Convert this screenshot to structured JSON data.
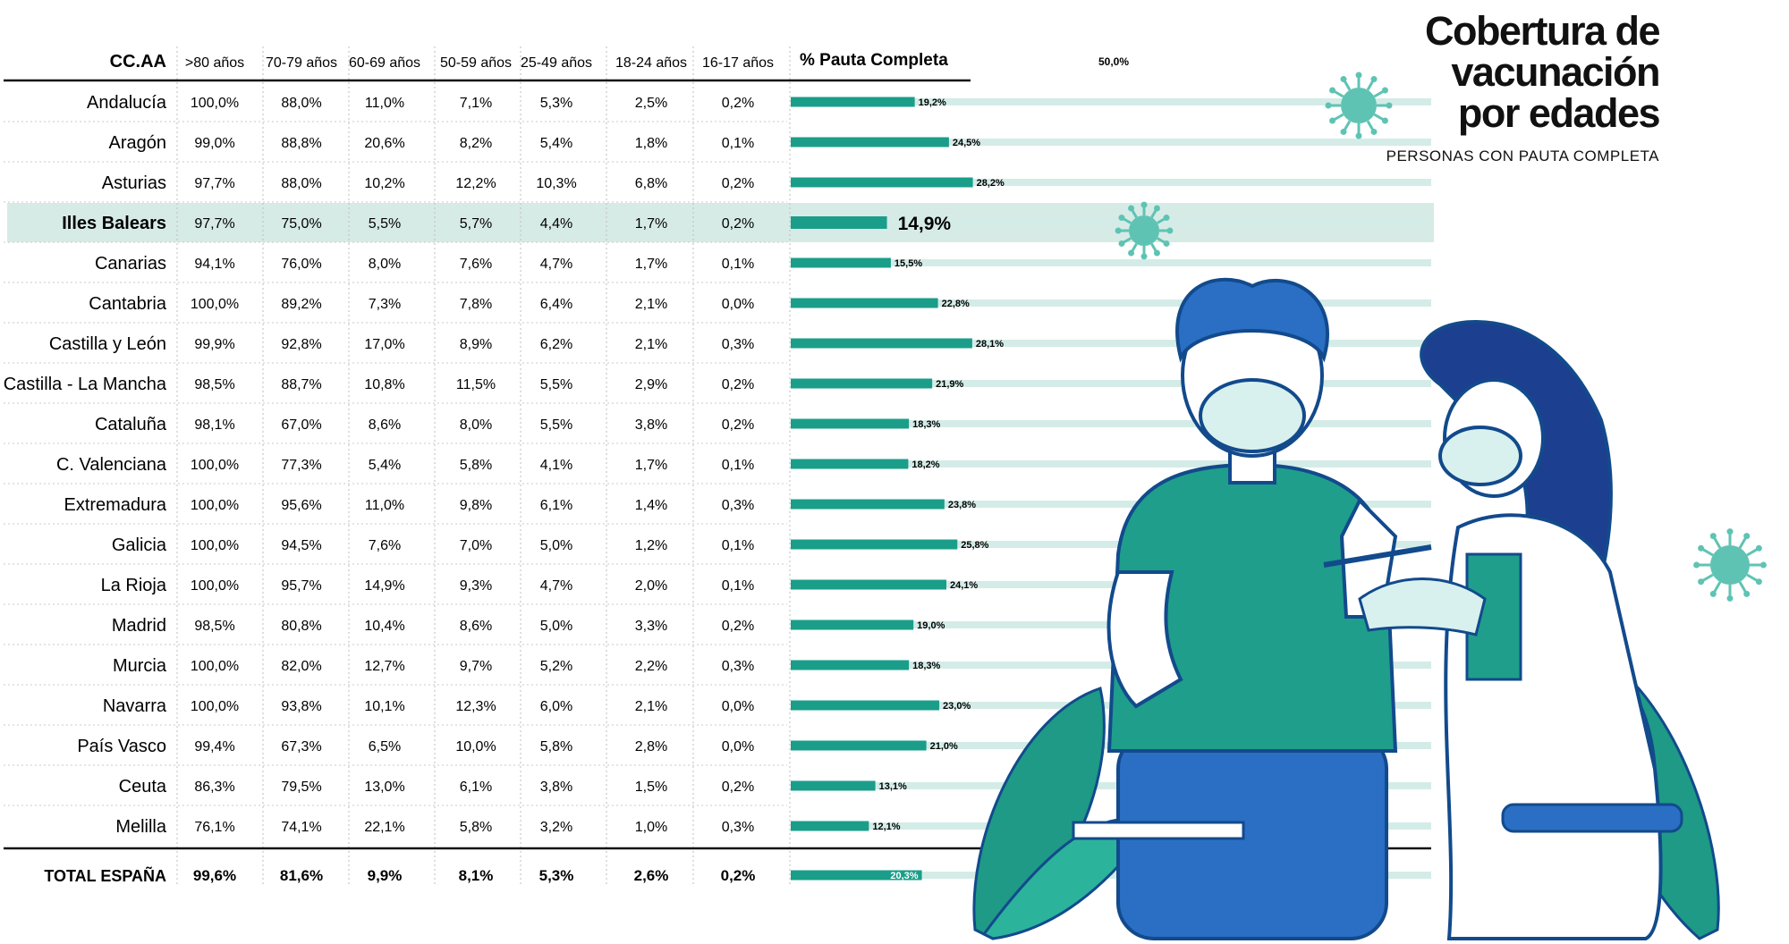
{
  "title_lines": [
    "Cobertura de",
    "vacunación",
    "por edades"
  ],
  "subtitle": "PERSONAS CON PAUTA COMPLETA",
  "columns": [
    "CC.AA",
    ">80 años",
    "70-79 años",
    "60-69 años",
    "50-59 años",
    "25-49 años",
    "18-24 años",
    "16-17 años",
    "% Pauta Completa"
  ],
  "scale_label": "50,0%",
  "highlight_row": "Illes Balears",
  "colors": {
    "bar": "#1a9e8a",
    "track": "#d4ece7",
    "highlight": "#d7ebe6",
    "virus": "#5fc3b3"
  },
  "chart_data": {
    "type": "table",
    "bar_column": "% Pauta Completa",
    "xlim": [
      0,
      50
    ],
    "rows": [
      {
        "region": "Andalucía",
        "values": [
          "100,0%",
          "88,0%",
          "11,0%",
          "7,1%",
          "5,3%",
          "2,5%",
          "0,2%"
        ],
        "pauta": 19.2,
        "pauta_label": "19,2%"
      },
      {
        "region": "Aragón",
        "values": [
          "99,0%",
          "88,8%",
          "20,6%",
          "8,2%",
          "5,4%",
          "1,8%",
          "0,1%"
        ],
        "pauta": 24.5,
        "pauta_label": "24,5%"
      },
      {
        "region": "Asturias",
        "values": [
          "97,7%",
          "88,0%",
          "10,2%",
          "12,2%",
          "10,3%",
          "6,8%",
          "0,2%"
        ],
        "pauta": 28.2,
        "pauta_label": "28,2%"
      },
      {
        "region": "Illes Balears",
        "values": [
          "97,7%",
          "75,0%",
          "5,5%",
          "5,7%",
          "4,4%",
          "1,7%",
          "0,2%"
        ],
        "pauta": 14.9,
        "pauta_label": "14,9%"
      },
      {
        "region": "Canarias",
        "values": [
          "94,1%",
          "76,0%",
          "8,0%",
          "7,6%",
          "4,7%",
          "1,7%",
          "0,1%"
        ],
        "pauta": 15.5,
        "pauta_label": "15,5%"
      },
      {
        "region": "Cantabria",
        "values": [
          "100,0%",
          "89,2%",
          "7,3%",
          "7,8%",
          "6,4%",
          "2,1%",
          "0,0%"
        ],
        "pauta": 22.8,
        "pauta_label": "22,8%"
      },
      {
        "region": "Castilla y León",
        "values": [
          "99,9%",
          "92,8%",
          "17,0%",
          "8,9%",
          "6,2%",
          "2,1%",
          "0,3%"
        ],
        "pauta": 28.1,
        "pauta_label": "28,1%"
      },
      {
        "region": "Castilla - La Mancha",
        "values": [
          "98,5%",
          "88,7%",
          "10,8%",
          "11,5%",
          "5,5%",
          "2,9%",
          "0,2%"
        ],
        "pauta": 21.9,
        "pauta_label": "21,9%"
      },
      {
        "region": "Cataluña",
        "values": [
          "98,1%",
          "67,0%",
          "8,6%",
          "8,0%",
          "5,5%",
          "3,8%",
          "0,2%"
        ],
        "pauta": 18.3,
        "pauta_label": "18,3%"
      },
      {
        "region": "C. Valenciana",
        "values": [
          "100,0%",
          "77,3%",
          "5,4%",
          "5,8%",
          "4,1%",
          "1,7%",
          "0,1%"
        ],
        "pauta": 18.2,
        "pauta_label": "18,2%"
      },
      {
        "region": "Extremadura",
        "values": [
          "100,0%",
          "95,6%",
          "11,0%",
          "9,8%",
          "6,1%",
          "1,4%",
          "0,3%"
        ],
        "pauta": 23.8,
        "pauta_label": "23,8%"
      },
      {
        "region": "Galicia",
        "values": [
          "100,0%",
          "94,5%",
          "7,6%",
          "7,0%",
          "5,0%",
          "1,2%",
          "0,1%"
        ],
        "pauta": 25.8,
        "pauta_label": "25,8%"
      },
      {
        "region": "La Rioja",
        "values": [
          "100,0%",
          "95,7%",
          "14,9%",
          "9,3%",
          "4,7%",
          "2,0%",
          "0,1%"
        ],
        "pauta": 24.1,
        "pauta_label": "24,1%"
      },
      {
        "region": "Madrid",
        "values": [
          "98,5%",
          "80,8%",
          "10,4%",
          "8,6%",
          "5,0%",
          "3,3%",
          "0,2%"
        ],
        "pauta": 19.0,
        "pauta_label": "19,0%"
      },
      {
        "region": "Murcia",
        "values": [
          "100,0%",
          "82,0%",
          "12,7%",
          "9,7%",
          "5,2%",
          "2,2%",
          "0,3%"
        ],
        "pauta": 18.3,
        "pauta_label": "18,3%"
      },
      {
        "region": "Navarra",
        "values": [
          "100,0%",
          "93,8%",
          "10,1%",
          "12,3%",
          "6,0%",
          "2,1%",
          "0,0%"
        ],
        "pauta": 23.0,
        "pauta_label": "23,0%"
      },
      {
        "region": "País Vasco",
        "values": [
          "99,4%",
          "67,3%",
          "6,5%",
          "10,0%",
          "5,8%",
          "2,8%",
          "0,0%"
        ],
        "pauta": 21.0,
        "pauta_label": "21,0%"
      },
      {
        "region": "Ceuta",
        "values": [
          "86,3%",
          "79,5%",
          "13,0%",
          "6,1%",
          "3,8%",
          "1,5%",
          "0,2%"
        ],
        "pauta": 13.1,
        "pauta_label": "13,1%"
      },
      {
        "region": "Melilla",
        "values": [
          "76,1%",
          "74,1%",
          "22,1%",
          "5,8%",
          "3,2%",
          "1,0%",
          "0,3%"
        ],
        "pauta": 12.1,
        "pauta_label": "12,1%"
      }
    ],
    "total": {
      "region": "TOTAL ESPAÑA",
      "values": [
        "99,6%",
        "81,6%",
        "9,9%",
        "8,1%",
        "5,3%",
        "2,6%",
        "0,2%"
      ],
      "pauta": 20.3,
      "pauta_label": "20,3%"
    }
  }
}
